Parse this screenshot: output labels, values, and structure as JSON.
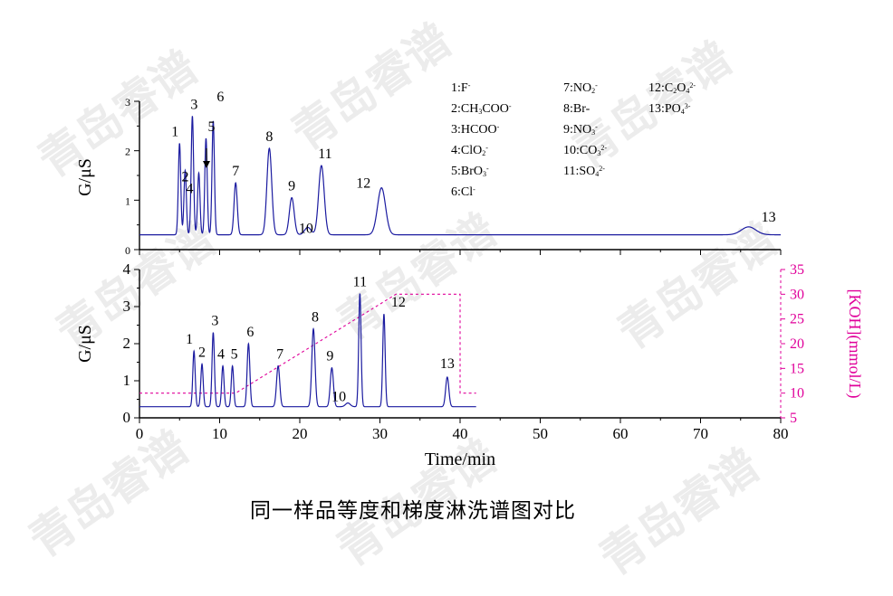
{
  "caption": "同一样品等度和梯度淋洗谱图对比",
  "watermark": "青岛睿谱",
  "legend": [
    {
      "num": "1:",
      "ion": "F",
      "sub": "",
      "sup": "-"
    },
    {
      "num": "2:",
      "ion": "CH",
      "sub": "3",
      "tail": "COO",
      "sup": "-"
    },
    {
      "num": "3:",
      "ion": "HCOO",
      "sub": "",
      "sup": "-"
    },
    {
      "num": "4:",
      "ion": "ClO",
      "sub": "2",
      "sup": "-"
    },
    {
      "num": "5:",
      "ion": "BrO",
      "sub": "3",
      "sup": "-"
    },
    {
      "num": "6:",
      "ion": "Cl",
      "sub": "",
      "sup": "-"
    },
    {
      "num": "7:",
      "ion": "NO",
      "sub": "2",
      "sup": "-"
    },
    {
      "num": "8:",
      "ion": "Br-",
      "sub": "",
      "sup": ""
    },
    {
      "num": "9:",
      "ion": "NO",
      "sub": "3",
      "sup": "-"
    },
    {
      "num": "10:",
      "ion": "CO",
      "sub": "3",
      "sup": "2-"
    },
    {
      "num": "11:",
      "ion": "SO",
      "sub": "4",
      "sup": "2-"
    },
    {
      "num": "12:",
      "ion": "C",
      "sub": "2",
      "tail": "O",
      "sub2": "4",
      "sup": "2-"
    },
    {
      "num": "13:",
      "ion": "PO",
      "sub": "4",
      "sup": "3-"
    }
  ],
  "chart_data": [
    {
      "type": "line",
      "xlabel": "",
      "ylabel": "G/μS",
      "xlim": [
        0,
        80
      ],
      "ylim": [
        0,
        3
      ],
      "yticks": [
        "0",
        "1",
        "2",
        "3"
      ],
      "baseline": 0.3,
      "peaks": [
        {
          "label": "1",
          "t": 5.0,
          "h": 2.15,
          "w": 0.15
        },
        {
          "label": "2",
          "t": 5.7,
          "h": 1.6,
          "w": 0.15
        },
        {
          "label": "3",
          "t": 6.6,
          "h": 2.7,
          "w": 0.15
        },
        {
          "label": "4",
          "t": 7.4,
          "h": 1.55,
          "w": 0.15
        },
        {
          "label": "5",
          "t": 8.3,
          "h": 2.25,
          "w": 0.15
        },
        {
          "label": "6",
          "t": 9.2,
          "h": 2.6,
          "w": 0.15
        },
        {
          "label": "7",
          "t": 12.0,
          "h": 1.35,
          "w": 0.2
        },
        {
          "label": "8",
          "t": 16.2,
          "h": 2.05,
          "w": 0.3
        },
        {
          "label": "9",
          "t": 19.0,
          "h": 1.05,
          "w": 0.3
        },
        {
          "label": "10",
          "t": 21.0,
          "h": 0.45,
          "w": 0.4
        },
        {
          "label": "11",
          "t": 22.7,
          "h": 1.7,
          "w": 0.35
        },
        {
          "label": "12",
          "t": 30.2,
          "h": 1.25,
          "w": 0.5
        },
        {
          "label": "13",
          "t": 76.0,
          "h": 0.46,
          "w": 0.9
        }
      ]
    },
    {
      "type": "line",
      "xlabel": "Time/min",
      "ylabel": "G/μS",
      "xlim": [
        0,
        80
      ],
      "ylim": [
        0,
        4
      ],
      "xticks": [
        "0",
        "10",
        "20",
        "30",
        "40",
        "50",
        "60",
        "70",
        "80"
      ],
      "yticks": [
        "0",
        "1",
        "2",
        "3",
        "4"
      ],
      "baseline": 0.3,
      "trace_end": 42.0,
      "peaks": [
        {
          "label": "1",
          "t": 6.8,
          "h": 1.8,
          "w": 0.15
        },
        {
          "label": "2",
          "t": 7.8,
          "h": 1.45,
          "w": 0.15
        },
        {
          "label": "3",
          "t": 9.2,
          "h": 2.3,
          "w": 0.15
        },
        {
          "label": "4",
          "t": 10.4,
          "h": 1.4,
          "w": 0.15
        },
        {
          "label": "5",
          "t": 11.6,
          "h": 1.4,
          "w": 0.15
        },
        {
          "label": "6",
          "t": 13.6,
          "h": 2.0,
          "w": 0.17
        },
        {
          "label": "7",
          "t": 17.3,
          "h": 1.4,
          "w": 0.2
        },
        {
          "label": "8",
          "t": 21.7,
          "h": 2.4,
          "w": 0.2
        },
        {
          "label": "9",
          "t": 24.0,
          "h": 1.35,
          "w": 0.2
        },
        {
          "label": "10",
          "t": 26.0,
          "h": 0.4,
          "w": 0.3
        },
        {
          "label": "11",
          "t": 27.5,
          "h": 3.35,
          "w": 0.15
        },
        {
          "label": "12",
          "t": 30.5,
          "h": 2.8,
          "w": 0.15
        },
        {
          "label": "13",
          "t": 38.4,
          "h": 1.1,
          "w": 0.2
        }
      ],
      "secondary_axis": {
        "label": "[KOH](mmol/L)",
        "ylim": [
          5,
          35
        ],
        "yticks": [
          "5",
          "10",
          "15",
          "20",
          "25",
          "30",
          "35"
        ],
        "gradient_points": [
          [
            0,
            10
          ],
          [
            12,
            10
          ],
          [
            32,
            30
          ],
          [
            40,
            30
          ],
          [
            40,
            10
          ],
          [
            42,
            10
          ]
        ]
      }
    }
  ]
}
